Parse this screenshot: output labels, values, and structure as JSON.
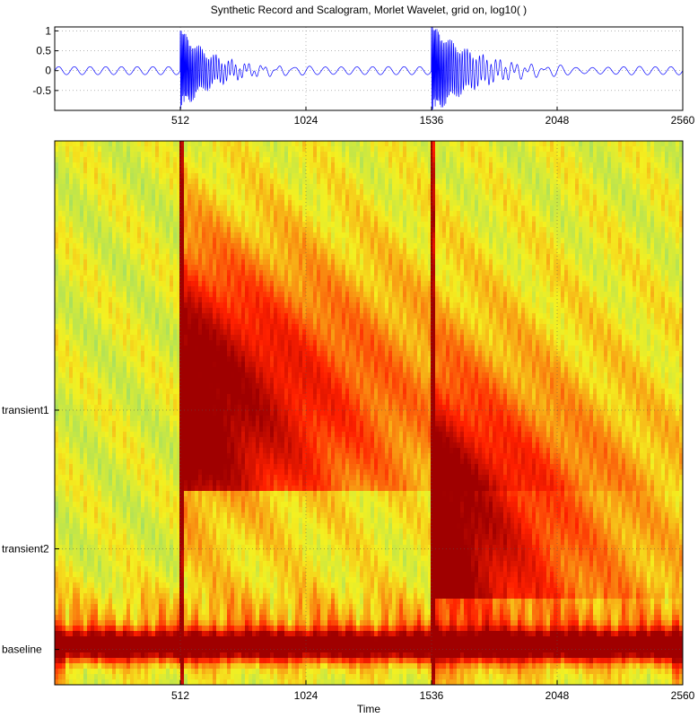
{
  "figure": {
    "title": "Synthetic Record and Scalogram, Morlet Wavelet, grid on, log10( )"
  },
  "chart_data": [
    {
      "type": "line",
      "name": "synthetic-record",
      "title": "Synthetic Record and Scalogram, Morlet Wavelet, grid on, log10( )",
      "xlabel": "",
      "ylabel": "",
      "xlim": [
        0,
        2560
      ],
      "ylim": [
        -1.0,
        1.1
      ],
      "xticks": [
        512,
        1024,
        1536,
        2048,
        2560
      ],
      "xtick_labels": [
        "512",
        "1024",
        "1536",
        "2048",
        "2560"
      ],
      "yticks": [
        -0.5,
        0,
        0.5,
        1
      ],
      "ytick_labels": [
        "-0.5",
        "0",
        "0.5",
        "1"
      ],
      "grid": true,
      "line_color": "#0000ff",
      "baseline": {
        "amplitude": 0.1,
        "period": 64
      },
      "events": [
        {
          "x": 512,
          "amplitude": 1.0,
          "decay": 0.008
        },
        {
          "x": 1536,
          "amplitude": 1.1,
          "decay": 0.006
        }
      ]
    },
    {
      "type": "heatmap",
      "name": "scalogram",
      "xlabel": "Time",
      "ylabel": "",
      "xlim": [
        0,
        2560
      ],
      "xticks": [
        512,
        1024,
        1536,
        2048,
        2560
      ],
      "xtick_labels": [
        "512",
        "1024",
        "1536",
        "2048",
        "2560"
      ],
      "yticks": [
        "transient1",
        "transient2",
        "baseline"
      ],
      "ytick_labels": [
        "transient1",
        "transient2",
        "baseline"
      ],
      "grid": true,
      "colormap": "jet-upper",
      "colors": {
        "low": "#30c8c0",
        "mid": "#f4f020",
        "high": "#ff2000",
        "peak": "#a00000"
      }
    }
  ]
}
